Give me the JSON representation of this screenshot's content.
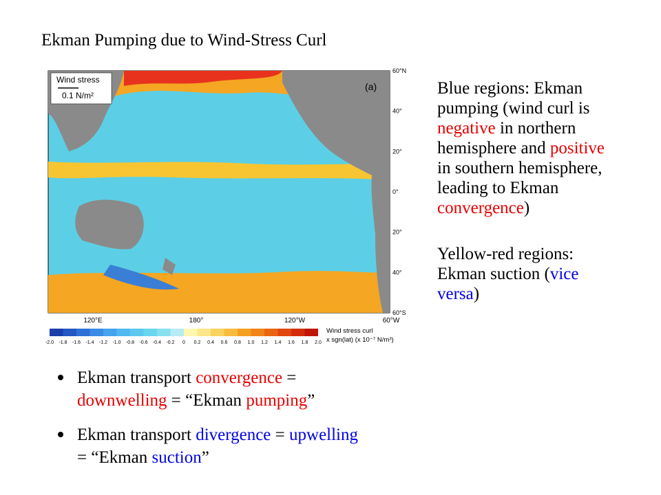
{
  "title": "Ekman Pumping due to Wind-Stress Curl",
  "map": {
    "panel_label": "(a)",
    "legend_title": "Wind stress",
    "legend_scale": "0.1 N/m²",
    "lat_labels": [
      "60°N",
      "40°",
      "20°",
      "0°",
      "20°",
      "40°",
      "60°S"
    ],
    "lon_labels": [
      "120°E",
      "180°",
      "120°W",
      "60°W"
    ],
    "colorbar_title": [
      "Wind stress curl",
      "x sgn(lat) (x 10⁻⁷ N/m³)"
    ],
    "colorbar_ticks": [
      "-2.0",
      "-1.8",
      "-1.6",
      "-1.4",
      "-1.2",
      "-1.0",
      "-0.8",
      "-0.6",
      "-0.4",
      "-0.2",
      "0",
      "0.2",
      "0.4",
      "0.6",
      "0.8",
      "1.0",
      "1.2",
      "1.4",
      "1.6",
      "1.8",
      "2.0"
    ]
  },
  "side_text": [
    [
      {
        "text": "Blue regions: Ekman"
      }
    ],
    [
      {
        "text": "pumping (wind curl is"
      }
    ],
    [
      {
        "text": "negative",
        "color": "#e60000"
      },
      {
        "text": " in northern"
      }
    ],
    [
      {
        "text": "hemisphere and "
      },
      {
        "text": "positive",
        "color": "#e60000"
      }
    ],
    [
      {
        "text": "in southern hemisphere,"
      }
    ],
    [
      {
        "text": "leading to Ekman"
      }
    ],
    [
      {
        "text": "convergence",
        "color": "#e60000"
      },
      {
        "text": ")"
      }
    ],
    [
      {
        "text": "Yellow-red regions:"
      }
    ],
    [
      {
        "text": "Ekman suction ("
      },
      {
        "text": "vice",
        "color": "#0000e6"
      }
    ],
    [
      {
        "text": "versa",
        "color": "#0000e6"
      },
      {
        "text": ")"
      }
    ]
  ],
  "bullets": [
    [
      [
        {
          "text": "Ekman transport "
        },
        {
          "text": "convergence",
          "color": "#e60000"
        },
        {
          "text": " ="
        }
      ],
      [
        {
          "text": "downwelling",
          "color": "#e60000"
        },
        {
          "text": " = “Ekman "
        },
        {
          "text": "pumping",
          "color": "#e60000"
        },
        {
          "text": "”"
        }
      ]
    ],
    [
      [
        {
          "text": "Ekman transport "
        },
        {
          "text": "divergence",
          "color": "#0000e6"
        },
        {
          "text": " = "
        },
        {
          "text": "upwelling",
          "color": "#0000e6"
        }
      ],
      [
        {
          "text": "= “Ekman "
        },
        {
          "text": "suction",
          "color": "#0000e6"
        },
        {
          "text": "”"
        }
      ]
    ]
  ]
}
